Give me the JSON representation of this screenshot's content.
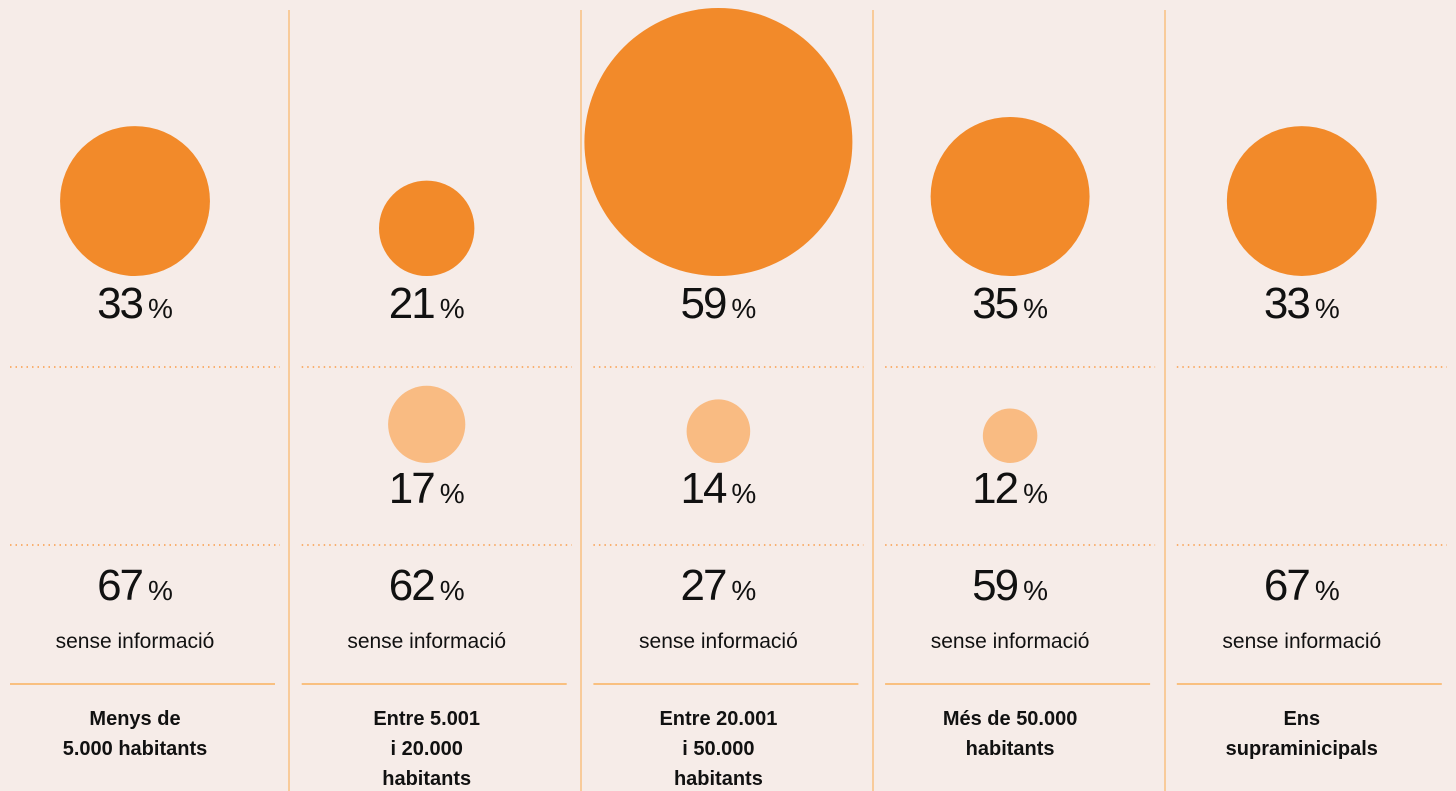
{
  "chart_data": {
    "type": "bubble",
    "unit": "%",
    "categories": [
      [
        "Menys de",
        "5.000 habitants"
      ],
      [
        "Entre 5.001",
        "i 20.000",
        "habitants"
      ],
      [
        "Entre 20.001",
        "i 50.000",
        "habitants"
      ],
      [
        "Més de 50.000",
        "habitants"
      ],
      [
        "Ens",
        "supraminicipals"
      ]
    ],
    "series": [
      {
        "color": "#f28a2a",
        "values": [
          33,
          21,
          59,
          35,
          33
        ]
      },
      {
        "color": "#f9bb82",
        "values": [
          null,
          17,
          14,
          12,
          null
        ]
      },
      {
        "name": "sense informació",
        "values": [
          67,
          62,
          27,
          59,
          67
        ]
      }
    ]
  }
}
